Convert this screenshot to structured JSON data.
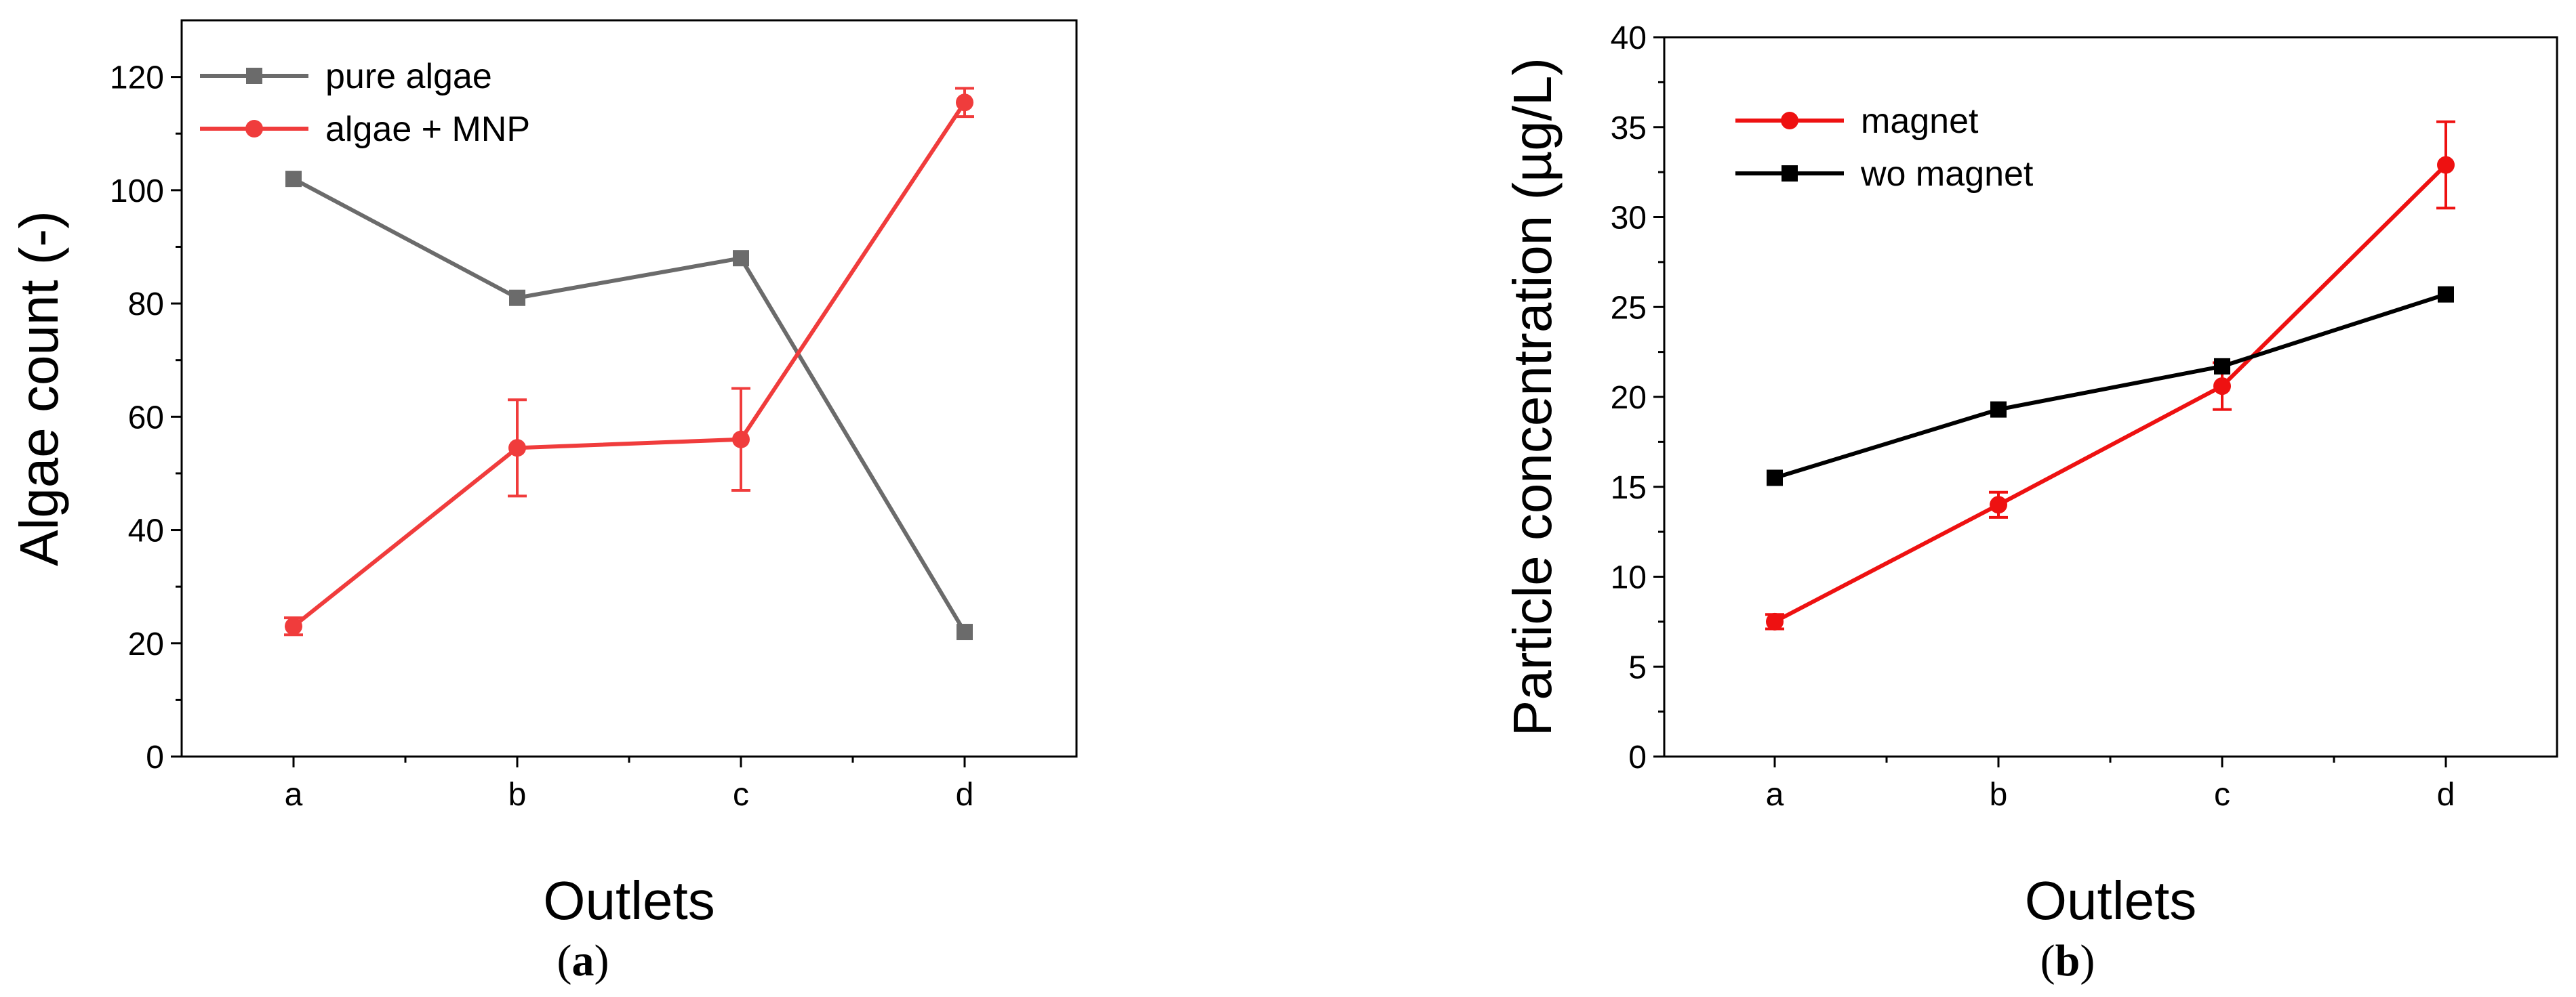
{
  "chart_data": [
    {
      "type": "line",
      "panel": "a",
      "categories": [
        "a",
        "b",
        "c",
        "d"
      ],
      "xlabel": "Outlets",
      "ylabel": "Algae count (-)",
      "ylim": [
        0,
        130
      ],
      "yticks": [
        0,
        20,
        40,
        60,
        80,
        100,
        120
      ],
      "legend_position": "top-left",
      "series": [
        {
          "name": "pure algae",
          "color": "#6b6b6b",
          "marker": "square",
          "values": [
            102,
            81,
            88,
            22
          ],
          "errors": [
            0,
            0,
            0,
            0
          ]
        },
        {
          "name": "algae +  MNP",
          "color": "#f03c3c",
          "marker": "circle",
          "values": [
            23,
            54.5,
            56,
            115.5
          ],
          "errors": [
            1.5,
            8.5,
            9,
            2.5
          ]
        }
      ]
    },
    {
      "type": "line",
      "panel": "b",
      "categories": [
        "a",
        "b",
        "c",
        "d"
      ],
      "xlabel": "Outlets",
      "ylabel": "Particle concentration (µg/L)",
      "ylim": [
        0,
        40
      ],
      "yticks": [
        0,
        5,
        10,
        15,
        20,
        25,
        30,
        35,
        40
      ],
      "legend_position": "top-left",
      "series": [
        {
          "name": "magnet",
          "color": "#ee1111",
          "marker": "circle",
          "values": [
            7.5,
            14,
            20.6,
            32.9
          ],
          "errors": [
            0.4,
            0.7,
            1.3,
            2.4
          ]
        },
        {
          "name": "wo magnet",
          "color": "#000000",
          "marker": "square",
          "values": [
            15.5,
            19.3,
            21.7,
            25.7
          ],
          "errors": [
            0,
            0,
            0,
            0
          ]
        }
      ]
    }
  ],
  "captions": [
    {
      "open": "(",
      "letter": "a",
      "close": ")"
    },
    {
      "open": "(",
      "letter": "b",
      "close": ")"
    }
  ]
}
